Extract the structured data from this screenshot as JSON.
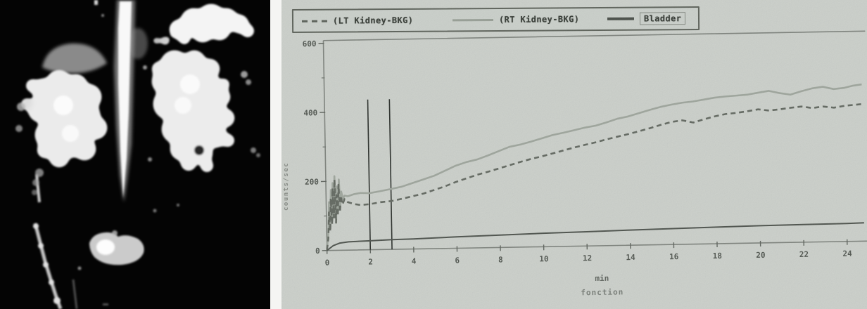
{
  "scan_panel": {
    "description": "renal scintigraphy grayscale image"
  },
  "chart": {
    "legend": [
      {
        "label": "(LT Kidney-BKG)"
      },
      {
        "label": "(RT Kidney-BKG)"
      },
      {
        "label": "Bladder"
      }
    ],
    "x_axis": {
      "label": "min",
      "caption": "fonction"
    },
    "y_axis": {
      "title": "counts/sec"
    }
  },
  "chart_data": {
    "type": "line",
    "title": "",
    "xlabel": "min",
    "ylabel": "counts/sec",
    "xlim": [
      0,
      25
    ],
    "ylim": [
      0,
      600
    ],
    "grid": false,
    "legend_position": "top",
    "x_ticks": [
      0,
      2,
      4,
      6,
      8,
      10,
      12,
      14,
      16,
      18,
      20,
      22,
      24
    ],
    "y_ticks_major": [
      0,
      200,
      400,
      600
    ],
    "y_ticks_minor": [
      100,
      300,
      500
    ],
    "roi_markers": {
      "x_minutes": [
        2,
        3
      ],
      "top_value": 435
    },
    "series": [
      {
        "name": "(LT Kidney-BKG)",
        "style": "dashed",
        "color": "#60665e",
        "points": [
          [
            0,
            2
          ],
          [
            0.07,
            35
          ],
          [
            0.12,
            110
          ],
          [
            0.17,
            55
          ],
          [
            0.21,
            150
          ],
          [
            0.26,
            75
          ],
          [
            0.3,
            180
          ],
          [
            0.35,
            95
          ],
          [
            0.4,
            205
          ],
          [
            0.44,
            80
          ],
          [
            0.48,
            160
          ],
          [
            0.53,
            100
          ],
          [
            0.58,
            190
          ],
          [
            0.63,
            110
          ],
          [
            0.68,
            158
          ],
          [
            0.75,
            132
          ],
          [
            0.85,
            148
          ],
          [
            1,
            139
          ],
          [
            1.3,
            133
          ],
          [
            1.6,
            130
          ],
          [
            2,
            132
          ],
          [
            2.5,
            137
          ],
          [
            3,
            140
          ],
          [
            3.5,
            146
          ],
          [
            4,
            153
          ],
          [
            4.5,
            160
          ],
          [
            5,
            170
          ],
          [
            5.5,
            180
          ],
          [
            6,
            192
          ],
          [
            6.5,
            202
          ],
          [
            7,
            212
          ],
          [
            7.5,
            220
          ],
          [
            8,
            229
          ],
          [
            8.5,
            238
          ],
          [
            9,
            247
          ],
          [
            9.5,
            255
          ],
          [
            10,
            262
          ],
          [
            10.5,
            270
          ],
          [
            11,
            278
          ],
          [
            11.5,
            286
          ],
          [
            12,
            293
          ],
          [
            12.5,
            300
          ],
          [
            13,
            308
          ],
          [
            13.5,
            315
          ],
          [
            14,
            322
          ],
          [
            14.5,
            330
          ],
          [
            15,
            338
          ],
          [
            15.5,
            347
          ],
          [
            16,
            355
          ],
          [
            16.5,
            359
          ],
          [
            17,
            352
          ],
          [
            17.5,
            361
          ],
          [
            18,
            369
          ],
          [
            18.5,
            375
          ],
          [
            19,
            378
          ],
          [
            19.5,
            382
          ],
          [
            20,
            387
          ],
          [
            20.5,
            383
          ],
          [
            21,
            386
          ],
          [
            21.5,
            390
          ],
          [
            22,
            393
          ],
          [
            22.5,
            388
          ],
          [
            23,
            392
          ],
          [
            23.5,
            388
          ],
          [
            24,
            393
          ],
          [
            24.4,
            395
          ],
          [
            24.8,
            397
          ]
        ]
      },
      {
        "name": "(RT Kidney-BKG)",
        "style": "solid",
        "color": "#a1a89f",
        "points": [
          [
            0,
            4
          ],
          [
            0.08,
            55
          ],
          [
            0.13,
            140
          ],
          [
            0.18,
            70
          ],
          [
            0.22,
            175
          ],
          [
            0.27,
            90
          ],
          [
            0.31,
            195
          ],
          [
            0.36,
            105
          ],
          [
            0.4,
            215
          ],
          [
            0.45,
            88
          ],
          [
            0.5,
            185
          ],
          [
            0.55,
            115
          ],
          [
            0.6,
            205
          ],
          [
            0.65,
            125
          ],
          [
            0.7,
            170
          ],
          [
            0.78,
            148
          ],
          [
            0.85,
            158
          ],
          [
            1,
            156
          ],
          [
            1.3,
            162
          ],
          [
            1.6,
            165
          ],
          [
            2,
            164
          ],
          [
            2.5,
            169
          ],
          [
            3,
            175
          ],
          [
            3.5,
            181
          ],
          [
            4,
            191
          ],
          [
            4.5,
            201
          ],
          [
            5,
            211
          ],
          [
            5.5,
            225
          ],
          [
            6,
            239
          ],
          [
            6.5,
            249
          ],
          [
            7,
            256
          ],
          [
            7.5,
            267
          ],
          [
            8,
            279
          ],
          [
            8.5,
            291
          ],
          [
            9,
            297
          ],
          [
            9.5,
            305
          ],
          [
            10,
            314
          ],
          [
            10.5,
            323
          ],
          [
            11,
            329
          ],
          [
            11.5,
            336
          ],
          [
            12,
            343
          ],
          [
            12.5,
            348
          ],
          [
            13,
            357
          ],
          [
            13.5,
            367
          ],
          [
            14,
            373
          ],
          [
            14.5,
            382
          ],
          [
            15,
            391
          ],
          [
            15.5,
            399
          ],
          [
            16,
            405
          ],
          [
            16.5,
            410
          ],
          [
            17,
            413
          ],
          [
            17.5,
            418
          ],
          [
            18,
            423
          ],
          [
            18.5,
            426
          ],
          [
            19,
            428
          ],
          [
            19.5,
            430
          ],
          [
            20,
            435
          ],
          [
            20.5,
            440
          ],
          [
            21,
            433
          ],
          [
            21.5,
            428
          ],
          [
            22,
            437
          ],
          [
            22.5,
            445
          ],
          [
            23,
            449
          ],
          [
            23.5,
            442
          ],
          [
            24,
            445
          ],
          [
            24.4,
            451
          ],
          [
            24.8,
            454
          ]
        ]
      },
      {
        "name": "Bladder",
        "style": "solid",
        "color": "#494e48",
        "points": [
          [
            0,
            0
          ],
          [
            0.3,
            14
          ],
          [
            0.6,
            21
          ],
          [
            1,
            24
          ],
          [
            2,
            26
          ],
          [
            3,
            28
          ],
          [
            4,
            29
          ],
          [
            5,
            31
          ],
          [
            6,
            33
          ],
          [
            8,
            36
          ],
          [
            10,
            39
          ],
          [
            12,
            41
          ],
          [
            14,
            44
          ],
          [
            16,
            46
          ],
          [
            18,
            48
          ],
          [
            20,
            50
          ],
          [
            22,
            51
          ],
          [
            24,
            52
          ],
          [
            24.8,
            53
          ]
        ]
      }
    ]
  }
}
